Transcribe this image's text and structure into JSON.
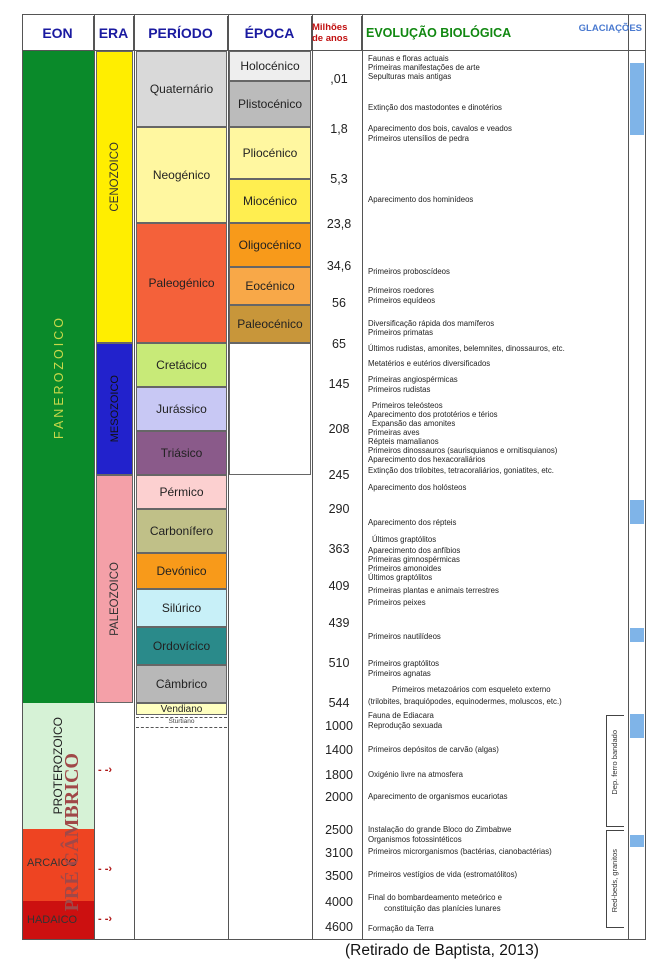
{
  "headers": {
    "eon": "EON",
    "era": "ERA",
    "periodo": "PERÍODO",
    "epoca": "ÉPOCA",
    "milhoes": "Milhões de anos",
    "evolucao": "EVOLUÇÃO BIOLÓGICA",
    "glaciacoes": "GLACIAÇÕES"
  },
  "eons": {
    "fanerozoico": "FANEROZOICO",
    "proterozoico": "PROTEROZOICO",
    "arcaico": "ARCAICO",
    "hadaico": "HADAICO",
    "pre_cambrico": "PRÉ CÂMBRICO"
  },
  "eras": {
    "cenozoico": "CENOZOICO",
    "mesozoico": "MESOZOICO",
    "paleozoico": "PALEOZOICO"
  },
  "periods": {
    "quaternario": "Quaternário",
    "neogenico": "Neogénico",
    "paleogenico": "Paleogénico",
    "cretacico": "Cretácico",
    "jurassico": "Jurássico",
    "triasico": "Triásico",
    "permico": "Pérmico",
    "carbonifero": "Carbonífero",
    "devonico": "Devónico",
    "silurico": "Silúrico",
    "ordovicico": "Ordovícico",
    "cambrico": "Câmbrico",
    "vendiano": "Vendiano",
    "sturtiano": "Sturtiano"
  },
  "epochs": {
    "holocenico": "Holocénico",
    "plistocenico": "Plistocénico",
    "pliocenico": "Pliocénico",
    "miocenico": "Miocénico",
    "oligocenico": "Oligocénico",
    "eocenico": "Eocénico",
    "paleocenico": "Paleocénico"
  },
  "ages": [
    ",01",
    "1,8",
    "5,3",
    "23,8",
    "34,6",
    "56",
    "65",
    "145",
    "208",
    "245",
    "290",
    "363",
    "409",
    "439",
    "510",
    "544",
    "1000",
    "1400",
    "1800",
    "2000",
    "2500",
    "3100",
    "3500",
    "4000",
    "4600"
  ],
  "events": [
    "Faunas e floras actuais",
    "Primeiras manifestações de arte",
    "Sepulturas mais antigas",
    "Extinção dos mastodontes e dinotérios",
    "Aparecimento dos bois, cavalos e veados",
    "Primeiros utensílios de pedra",
    "Aparecimento dos hominídeos",
    "Primeiros proboscídeos",
    "Primeiros roedores",
    "Primeiros equídeos",
    "Diversificação rápida dos mamíferos",
    "Primeiros primatas",
    "Últimos rudistas, amonites, belemnites, dinossauros, etc.",
    "Metatérios e eutérios diversificados",
    "Primeiras angiospérmicas",
    "Primeiros rudistas",
    "Primeiros teleósteos",
    "Aparecimento dos prototérios e térios",
    "Expansão das amonites",
    "Primeiras aves",
    "Répteis mamalianos",
    "Primeiros dinossauros (saurisquianos e ornitisquianos)",
    "Aparecimento dos hexacoraliários",
    "Extinção dos trilobites, tetracoraliários, goniatites, etc.",
    "Aparecimento dos holósteos",
    "Aparecimento dos répteis",
    "Últimos graptólitos",
    "Aparecimento dos anfíbios",
    "Primeiras gimnospérmicas",
    "Primeiros amonoides",
    "Últimos graptólitos",
    "Primeiras plantas e animais terrestres",
    "Primeiros peixes",
    "Primeiros nautilídeos",
    "Primeiros graptólitos",
    "Primeiros agnatas",
    "Primeiros metazoários com esqueleto externo",
    "(trilobites, braquiópodes, equinodermes, moluscos, etc.)",
    "Fauna de Ediacara",
    "Reprodução sexuada",
    "Primeiros depósitos de carvão (algas)",
    "Oxigénio livre na atmosfera",
    "Aparecimento de organismos eucariotas",
    "Instalação do grande Bloco do Zimbabwe",
    "Organismos fotossintéticos",
    "Primeiros microrganismos (bactérias, cianobactérias)",
    "Primeiros vestígios de vida (estromatólitos)",
    "Final do bombardeamento meteórico e",
    "constituição das planícies lunares",
    "Formação da Terra"
  ],
  "side_labels": {
    "dep_ferro": "Dep. ferro bandado",
    "red_beds": "Red-beds, granitos"
  },
  "credit": "(Retirado de Baptista, 2013)",
  "colors": {
    "fanerozoico": "#0a8a2a",
    "proterozoico": "#d6f2d6",
    "arcaico": "#ee4422",
    "hadaico": "#cc1010",
    "cenozoico": "#ffee00",
    "mesozoico": "#2222cc",
    "paleozoico": "#f4a0a8",
    "header_text": "#1a1aa0",
    "evolucao_text": "#118811",
    "glaciacao": "#7fb4e8",
    "arrow": "#b01818"
  }
}
